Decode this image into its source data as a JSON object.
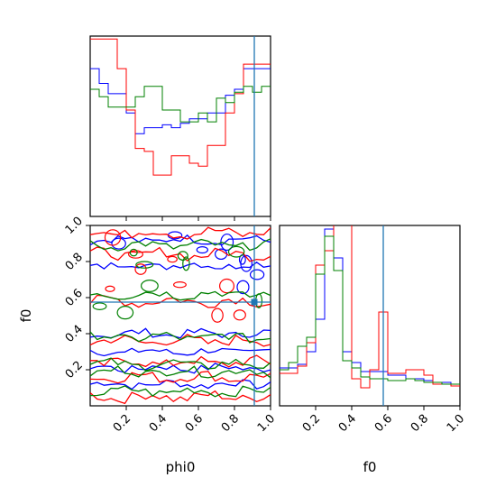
{
  "chart_data": {
    "type": "corner",
    "colors": {
      "blue": "#0000ff",
      "red": "#ff0000",
      "green": "#008000",
      "truth": "#1f77b4"
    },
    "parameters": [
      "phi0",
      "f0"
    ],
    "truths": {
      "phi0": 0.91,
      "f0": 0.575
    },
    "xlabel_phi0": "phi0",
    "xlabel_f0": "f0",
    "ylabel_f0": "f0",
    "ticks": [
      0.2,
      0.4,
      0.6,
      0.8,
      1.0
    ],
    "tick_labels": [
      "0.2",
      "0.4",
      "0.6",
      "0.8",
      "1.0"
    ],
    "range": [
      0.0,
      1.0
    ],
    "hist_phi0": {
      "edges": [
        0.0,
        0.05,
        0.1,
        0.15,
        0.2,
        0.25,
        0.3,
        0.35,
        0.4,
        0.45,
        0.5,
        0.55,
        0.6,
        0.65,
        0.7,
        0.75,
        0.8,
        0.85,
        0.9,
        0.95,
        1.0
      ],
      "series": [
        {
          "color": "blue",
          "values": [
            1.0,
            0.9,
            0.83,
            0.83,
            0.7,
            0.56,
            0.6,
            0.6,
            0.62,
            0.6,
            0.63,
            0.66,
            0.66,
            0.7,
            0.7,
            0.82,
            0.86,
            1.0,
            1.0,
            1.0
          ]
        },
        {
          "color": "red",
          "values": [
            1.2,
            1.2,
            1.2,
            1.0,
            0.72,
            0.46,
            0.44,
            0.28,
            0.28,
            0.41,
            0.41,
            0.36,
            0.34,
            0.48,
            0.48,
            0.7,
            0.83,
            1.03,
            1.03,
            1.03
          ]
        },
        {
          "color": "green",
          "values": [
            0.86,
            0.81,
            0.74,
            0.74,
            0.74,
            0.81,
            0.88,
            0.88,
            0.72,
            0.72,
            0.64,
            0.64,
            0.7,
            0.64,
            0.8,
            0.77,
            0.84,
            0.88,
            0.84,
            0.88
          ]
        }
      ]
    },
    "hist_f0": {
      "edges": [
        0.0,
        0.05,
        0.1,
        0.15,
        0.2,
        0.25,
        0.3,
        0.35,
        0.4,
        0.45,
        0.5,
        0.55,
        0.6,
        0.65,
        0.7,
        0.75,
        0.8,
        0.85,
        0.9,
        0.95,
        1.0
      ],
      "series": [
        {
          "color": "blue",
          "values": [
            0.21,
            0.21,
            0.23,
            0.3,
            0.48,
            0.98,
            0.82,
            0.3,
            0.24,
            0.19,
            0.19,
            0.19,
            0.17,
            0.17,
            0.15,
            0.15,
            0.14,
            0.13,
            0.13,
            0.12
          ]
        },
        {
          "color": "red",
          "values": [
            0.18,
            0.18,
            0.22,
            0.35,
            0.78,
            0.86,
            1.35,
            1.33,
            0.15,
            0.1,
            0.2,
            0.52,
            0.18,
            0.18,
            0.2,
            0.2,
            0.17,
            0.12,
            0.12,
            0.11
          ]
        },
        {
          "color": "green",
          "values": [
            0.2,
            0.24,
            0.33,
            0.38,
            0.73,
            0.94,
            0.75,
            0.25,
            0.21,
            0.16,
            0.15,
            0.15,
            0.14,
            0.14,
            0.15,
            0.14,
            0.13,
            0.13,
            0.12,
            0.12
          ]
        }
      ]
    },
    "contours_2d": {
      "series": [
        {
          "color": "blue",
          "levels_f": [
            0.12,
            0.21,
            0.3,
            0.4,
            0.78,
            0.92
          ],
          "wiggle": 0.022
        },
        {
          "color": "red",
          "levels_f": [
            0.05,
            0.16,
            0.24,
            0.36,
            0.58,
            0.84,
            0.96
          ],
          "wiggle": 0.028
        },
        {
          "color": "green",
          "levels_f": [
            0.08,
            0.19,
            0.23,
            0.38,
            0.62,
            0.89
          ],
          "wiggle": 0.025
        }
      ]
    }
  }
}
